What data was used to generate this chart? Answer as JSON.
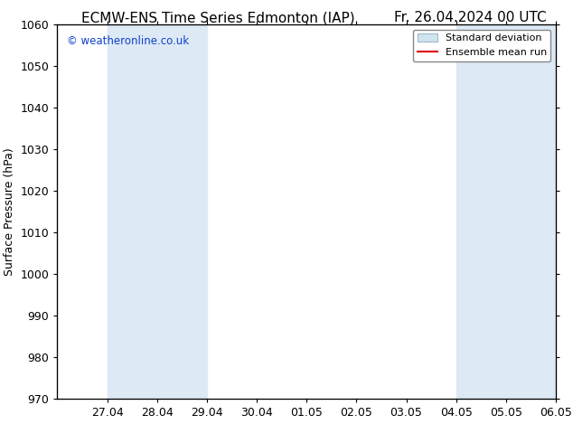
{
  "title_left": "ECMW-ENS Time Series Edmonton (IAP)",
  "title_right": "Fr. 26.04.2024 00 UTC",
  "ylabel": "Surface Pressure (hPa)",
  "ylim": [
    970,
    1060
  ],
  "yticks": [
    970,
    980,
    990,
    1000,
    1010,
    1020,
    1030,
    1040,
    1050,
    1060
  ],
  "xtick_labels": [
    "27.04",
    "28.04",
    "29.04",
    "30.04",
    "01.05",
    "02.05",
    "03.05",
    "04.05",
    "05.05",
    "06.05"
  ],
  "xtick_positions": [
    1,
    2,
    3,
    4,
    5,
    6,
    7,
    8,
    9,
    10
  ],
  "xlim": [
    0,
    10
  ],
  "shaded_bands": [
    {
      "x_start": 1,
      "x_end": 3
    },
    {
      "x_start": 8,
      "x_end": 10
    }
  ],
  "shade_color": "#ddeaf5",
  "watermark_text": "© weatheronline.co.uk",
  "watermark_color": "#1040cc",
  "legend_std_label": "Standard deviation",
  "legend_mean_label": "Ensemble mean run",
  "std_patch_color": "#d0e4f0",
  "std_patch_edge": "#a0b8cc",
  "mean_line_color": "#dd0000",
  "background_color": "#ffffff",
  "title_fontsize": 11,
  "ylabel_fontsize": 9,
  "tick_fontsize": 9,
  "legend_fontsize": 8
}
